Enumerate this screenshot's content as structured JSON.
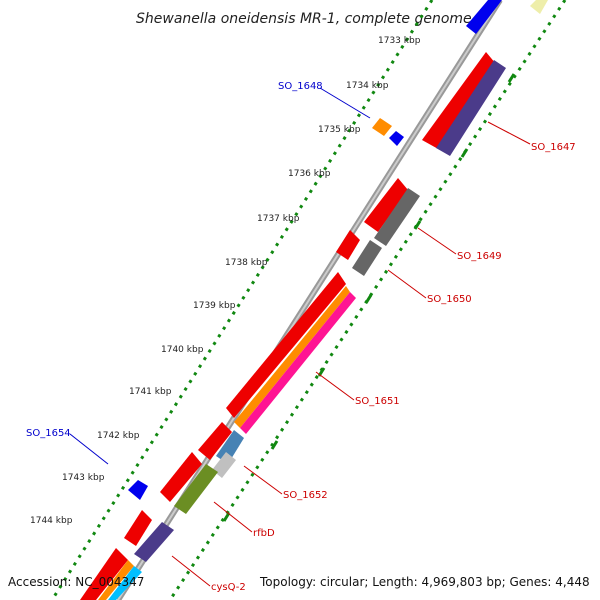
{
  "title": "Shewanella oneidensis MR-1, complete genome",
  "footer": {
    "accession": "Accession: NC_004347",
    "summary": "Topology: circular; Length: 4,969,803 bp; Genes: 4,448"
  },
  "ticks": [
    "1733 kbp",
    "1734 kbp",
    "1735 kbp",
    "1736 kbp",
    "1737 kbp",
    "1738 kbp",
    "1739 kbp",
    "1740 kbp",
    "1741 kbp",
    "1742 kbp",
    "1743 kbp",
    "1744 kbp"
  ],
  "labels": [
    {
      "text": "SO_1648",
      "color": "#0000cc"
    },
    {
      "text": "SO_1647",
      "color": "#cc0000"
    },
    {
      "text": "SO_1649",
      "color": "#cc0000"
    },
    {
      "text": "SO_1650",
      "color": "#cc0000"
    },
    {
      "text": "SO_1651",
      "color": "#cc0000"
    },
    {
      "text": "SO_1654",
      "color": "#0000cc"
    },
    {
      "text": "SO_1652",
      "color": "#cc0000"
    },
    {
      "text": "rfbD",
      "color": "#cc0000"
    },
    {
      "text": "cysQ-2",
      "color": "#cc0000"
    }
  ],
  "colors": {
    "backbone": "#888888",
    "cds": "#ee0000",
    "tick_dots": "#118811",
    "minus_strand_gene": "#0000ee"
  }
}
